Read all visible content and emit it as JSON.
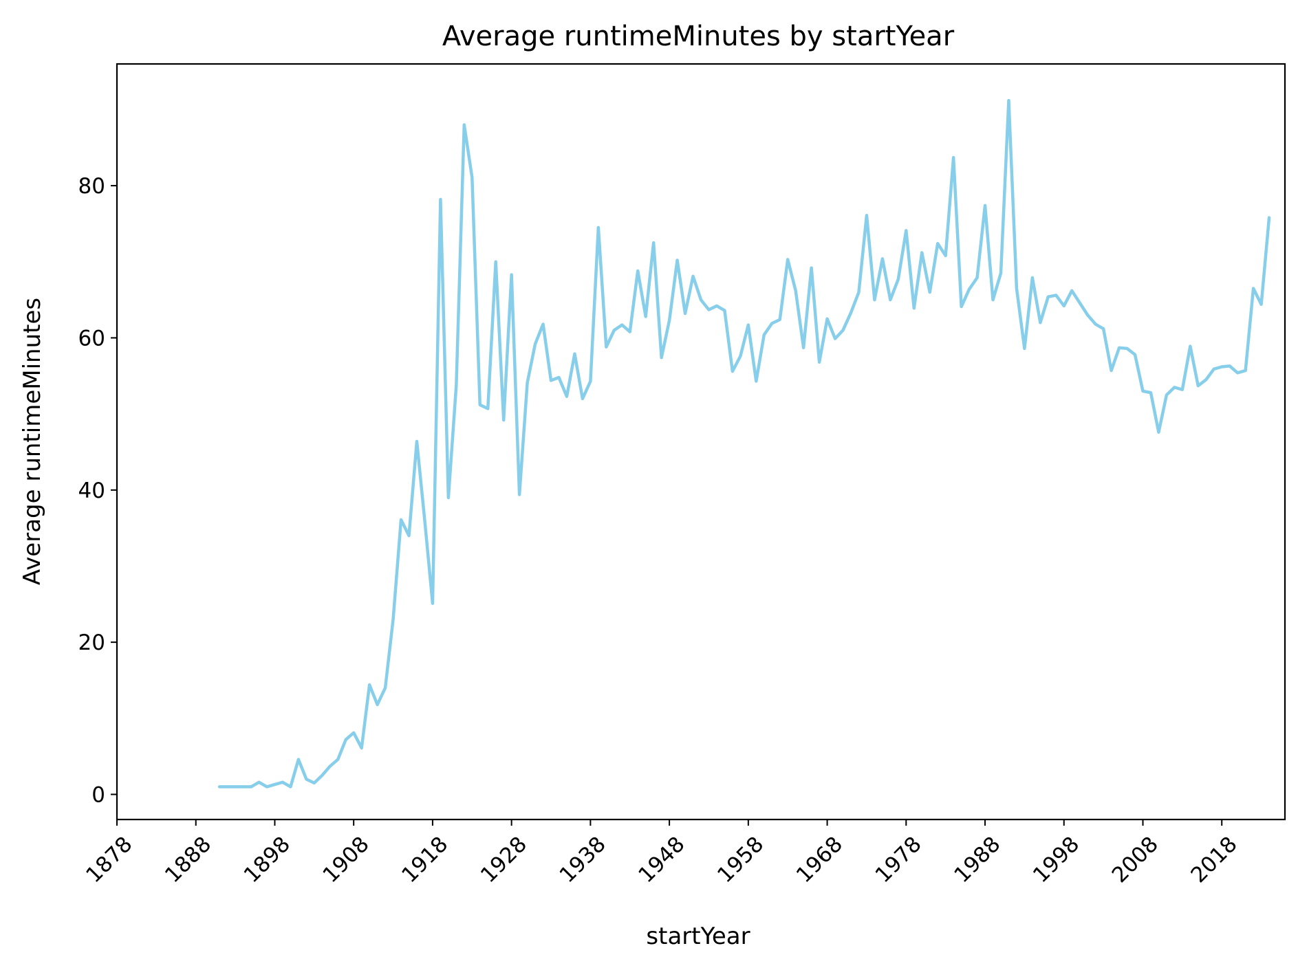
{
  "chart_data": {
    "type": "line",
    "title": "Average runtimeMinutes by startYear",
    "xlabel": "startYear",
    "ylabel": "Average runtimeMinutes",
    "xlim": [
      1878,
      2026
    ],
    "ylim": [
      -3.3,
      96
    ],
    "xticks": [
      1878,
      1888,
      1898,
      1908,
      1918,
      1928,
      1938,
      1948,
      1958,
      1968,
      1978,
      1988,
      1998,
      2008,
      2018
    ],
    "yticks": [
      0,
      20,
      40,
      60,
      80
    ],
    "x_tick_rotation": 45,
    "grid": false,
    "legend": "none",
    "series": [
      {
        "color": "#87CEEB",
        "x": [
          1891,
          1892,
          1893,
          1894,
          1895,
          1896,
          1897,
          1898,
          1899,
          1900,
          1901,
          1902,
          1903,
          1904,
          1905,
          1906,
          1907,
          1908,
          1909,
          1910,
          1911,
          1912,
          1913,
          1914,
          1915,
          1916,
          1917,
          1918,
          1919,
          1920,
          1921,
          1922,
          1923,
          1924,
          1925,
          1926,
          1927,
          1928,
          1929,
          1930,
          1931,
          1932,
          1933,
          1934,
          1935,
          1936,
          1937,
          1938,
          1939,
          1940,
          1941,
          1942,
          1943,
          1944,
          1945,
          1946,
          1947,
          1948,
          1949,
          1950,
          1951,
          1952,
          1953,
          1954,
          1955,
          1956,
          1957,
          1958,
          1959,
          1960,
          1961,
          1962,
          1963,
          1964,
          1965,
          1966,
          1967,
          1968,
          1969,
          1970,
          1971,
          1972,
          1973,
          1974,
          1975,
          1976,
          1977,
          1978,
          1979,
          1980,
          1981,
          1982,
          1983,
          1984,
          1985,
          1986,
          1987,
          1988,
          1989,
          1990,
          1991,
          1992,
          1993,
          1994,
          1995,
          1996,
          1997,
          1998,
          1999,
          2000,
          2001,
          2002,
          2003,
          2004,
          2005,
          2006,
          2007,
          2008,
          2009,
          2010,
          2011,
          2012,
          2013,
          2014,
          2015,
          2016,
          2017,
          2018,
          2019,
          2020,
          2021,
          2022,
          2023,
          2024
        ],
        "y": [
          1,
          1,
          1,
          1,
          1,
          1.6,
          1,
          1.3,
          1.6,
          1,
          4.6,
          2,
          1.5,
          2.5,
          3.7,
          4.6,
          7.2,
          8.1,
          6.1,
          14.4,
          11.8,
          14,
          23,
          36.1,
          34,
          46.4,
          36,
          25.1,
          78.2,
          39,
          53.8,
          88,
          81.1,
          51.2,
          50.7,
          70,
          49.2,
          68.3,
          39.4,
          54.1,
          59.2,
          61.8,
          54.4,
          54.8,
          52.3,
          57.9,
          52,
          54.3,
          74.5,
          58.8,
          61,
          61.7,
          60.8,
          68.8,
          62.8,
          72.5,
          57.4,
          62.3,
          70.2,
          63.2,
          68.1,
          65,
          63.7,
          64.2,
          63.6,
          55.6,
          57.6,
          61.7,
          54.3,
          60.4,
          61.9,
          62.4,
          70.3,
          66.2,
          58.7,
          69.2,
          56.8,
          62.5,
          59.9,
          61,
          63.3,
          66,
          76.1,
          65,
          70.4,
          65,
          67.7,
          74.1,
          63.9,
          71.2,
          66,
          72.4,
          70.8,
          83.7,
          64.1,
          66.4,
          67.9,
          77.4,
          65,
          68.5,
          91.2,
          66.5,
          58.6,
          67.9,
          62,
          65.4,
          65.6,
          64.2,
          66.2,
          64.6,
          63,
          61.8,
          61.2,
          55.7,
          58.7,
          58.6,
          57.8,
          53,
          52.8,
          47.6,
          52.5,
          53.5,
          53.2,
          58.9,
          53.7,
          54.5,
          55.9,
          56.2,
          56.3,
          55.4,
          55.7,
          66.5,
          64.4,
          75.8
        ]
      }
    ]
  }
}
